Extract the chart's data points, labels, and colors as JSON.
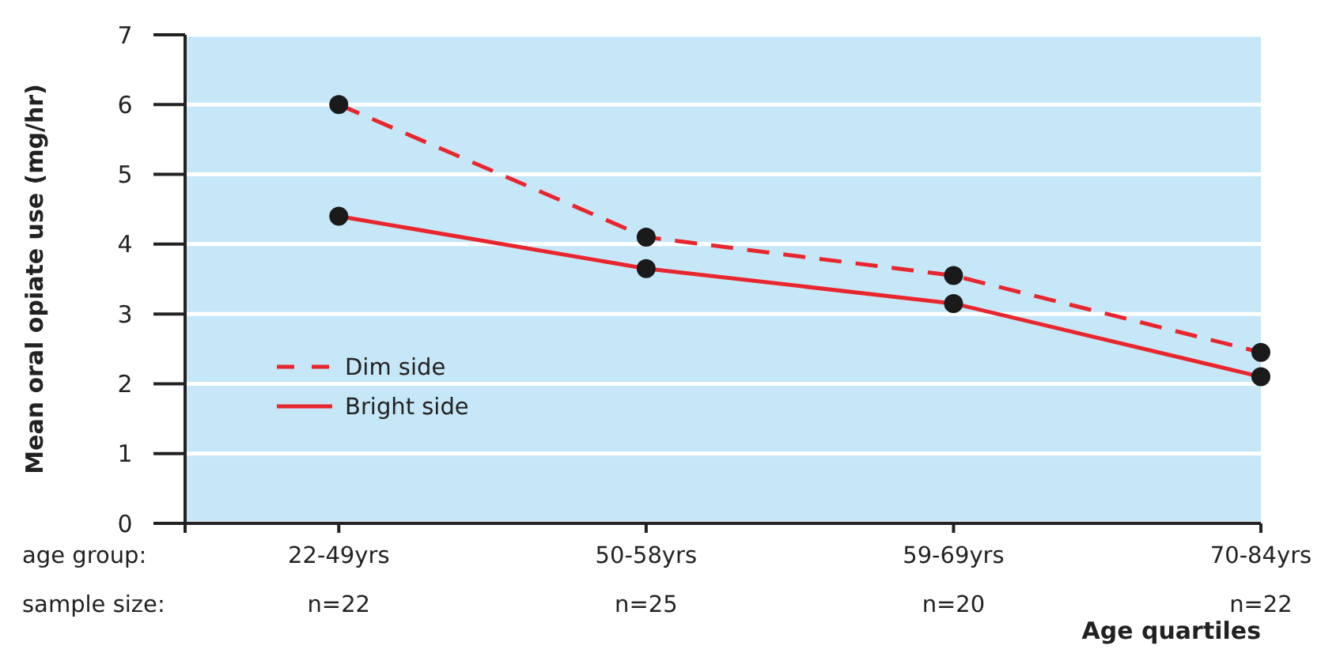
{
  "chart_data": {
    "type": "line",
    "ylabel": "Mean oral opiate use (mg/hr)",
    "xlabel": "Age quartiles",
    "categories": [
      "22-49yrs",
      "50-58yrs",
      "59-69yrs",
      "70-84yrs"
    ],
    "series": [
      {
        "name": "Dim side",
        "color": "#e8262d",
        "line_style": "dashed",
        "values": [
          6.0,
          4.1,
          3.55,
          2.45
        ]
      },
      {
        "name": "Bright side",
        "color": "#e8262d",
        "line_style": "solid",
        "values": [
          4.4,
          3.65,
          3.15,
          2.1
        ]
      }
    ],
    "ylim": [
      0,
      7
    ],
    "yticks": [
      0,
      1,
      2,
      3,
      4,
      5,
      6,
      7
    ],
    "grid": "y",
    "legend": "left",
    "marker": "circle",
    "annotations": [
      "age group:",
      "sample size:",
      "n=22",
      "n=25",
      "n=20",
      "n=22"
    ]
  }
}
